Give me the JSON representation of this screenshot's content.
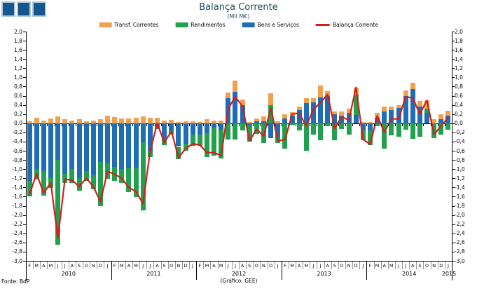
{
  "title": "Balança Corrente",
  "subtitle": "(Mil M€)",
  "source_note": "Fonte: BdP",
  "credit_note": "(Gráfico: GEE)",
  "logo": {
    "squares": 3,
    "color": "#15568E",
    "border_color": "#AFCBDD"
  },
  "colors": {
    "transf": "#F0A04E",
    "rendimentos": "#21A14D",
    "bens": "#1F6EB4",
    "balanca": "#D31E1E",
    "axis": "#000000",
    "title_text": "#1E4D5C"
  },
  "legend": [
    {
      "label": "Transf. Correntes",
      "color": "#F0A04E",
      "type": "box"
    },
    {
      "label": "Rendimentos",
      "color": "#21A14D",
      "type": "box"
    },
    {
      "label": "Bens e Serviços",
      "color": "#1F6EB4",
      "type": "box"
    },
    {
      "label": "Balança Corrente",
      "color": "#D31E1E",
      "type": "line"
    }
  ],
  "chart_data": {
    "type": "bar",
    "subtype": "stacked bars with line overlay",
    "unit": "Mil M€",
    "ylim": [
      -3.0,
      2.0
    ],
    "ytick_step": 0.2,
    "grid": false,
    "legend_position": "top",
    "months": [
      "F",
      "M",
      "A",
      "M",
      "J",
      "J",
      "A",
      "S",
      "O",
      "N",
      "D",
      "J",
      "F",
      "M",
      "A",
      "M",
      "J",
      "J",
      "A",
      "S",
      "O",
      "N",
      "D",
      "J",
      "F",
      "M",
      "A",
      "M",
      "J",
      "J",
      "A",
      "S",
      "O",
      "N",
      "D",
      "J",
      "F",
      "M",
      "A",
      "M",
      "J",
      "J",
      "A",
      "S",
      "O",
      "N",
      "D",
      "J",
      "F",
      "M",
      "A",
      "M",
      "J",
      "J",
      "A",
      "S",
      "O",
      "N",
      "D",
      "J"
    ],
    "years": [
      "2010",
      "2011",
      "2012",
      "2013",
      "2014",
      "2015"
    ],
    "stack_order": [
      "Bens e Serviços",
      "Rendimentos",
      "Transf. Correntes"
    ],
    "series": [
      {
        "name": "Transf. Correntes",
        "color": "#F0A04E",
        "role": "bar",
        "values": [
          0.05,
          0.12,
          0.06,
          0.11,
          0.15,
          0.09,
          0.06,
          0.09,
          0.05,
          0.06,
          0.09,
          0.16,
          0.14,
          0.1,
          0.1,
          0.12,
          0.15,
          0.12,
          0.12,
          0.06,
          0.08,
          0.03,
          0.05,
          0.05,
          0.03,
          0.09,
          0.06,
          0.06,
          0.13,
          0.25,
          0.12,
          0.02,
          0.06,
          0.1,
          0.26,
          0.05,
          0.08,
          0.08,
          0.08,
          0.1,
          0.1,
          0.25,
          0.1,
          0.07,
          0.1,
          0.1,
          0.15,
          0.02,
          0.02,
          0.1,
          0.1,
          0.08,
          0.05,
          0.12,
          0.15,
          0.12,
          0.18,
          0.09,
          0.1,
          0.11
        ]
      },
      {
        "name": "Rendimentos",
        "color": "#21A14D",
        "role": "bar",
        "values": [
          -0.35,
          -0.22,
          -0.53,
          -0.21,
          -1.85,
          -0.21,
          -0.3,
          -0.27,
          -0.2,
          -0.31,
          -0.95,
          -0.33,
          -0.3,
          -0.3,
          -0.52,
          -0.65,
          -1.48,
          -0.13,
          -0.04,
          -0.13,
          -0.1,
          -0.28,
          -0.15,
          -0.25,
          -0.25,
          -0.51,
          -0.61,
          -0.62,
          -0.35,
          -0.35,
          -0.15,
          -0.35,
          -0.24,
          -0.43,
          0.4,
          -0.1,
          -0.55,
          -0.04,
          -0.15,
          -0.6,
          -0.25,
          -0.37,
          -0.07,
          -0.37,
          -0.12,
          -0.25,
          0.45,
          -0.22,
          -0.32,
          -0.06,
          -0.55,
          -0.27,
          -0.3,
          -0.14,
          -0.34,
          -0.29,
          0.1,
          -0.33,
          -0.25,
          -0.14
        ]
      },
      {
        "name": "Bens e Serviços",
        "color": "#1F6EB4",
        "role": "bar",
        "values": [
          -1.25,
          -1.0,
          -1.05,
          -1.2,
          -0.8,
          -1.1,
          -1.0,
          -1.2,
          -1.05,
          -1.13,
          -0.85,
          -0.88,
          -0.95,
          -1.0,
          -0.98,
          -0.96,
          -0.42,
          -0.6,
          -0.08,
          -0.35,
          -0.15,
          -0.5,
          -0.45,
          -0.25,
          -0.25,
          -0.22,
          -0.09,
          -0.14,
          0.54,
          0.68,
          0.4,
          -0.05,
          0.05,
          0.05,
          -0.33,
          -0.33,
          0.11,
          0.16,
          0.29,
          0.44,
          0.45,
          0.57,
          0.6,
          0.19,
          0.16,
          0.22,
          0.18,
          -0.15,
          -0.16,
          0.12,
          0.26,
          0.29,
          0.34,
          0.6,
          0.74,
          0.37,
          0.22,
          0.0,
          0.09,
          0.16
        ]
      },
      {
        "name": "Balança Corrente",
        "color": "#D31E1E",
        "role": "line",
        "values": [
          -1.55,
          -1.1,
          -1.52,
          -1.3,
          -2.5,
          -1.22,
          -1.24,
          -1.38,
          -1.2,
          -1.38,
          -1.71,
          -1.05,
          -1.11,
          -1.2,
          -1.4,
          -1.49,
          -1.75,
          -0.61,
          0.0,
          -0.42,
          -0.17,
          -0.75,
          -0.55,
          -0.45,
          -0.47,
          -0.64,
          -0.64,
          -0.7,
          0.32,
          0.58,
          0.37,
          -0.38,
          -0.13,
          -0.28,
          0.33,
          -0.38,
          -0.36,
          0.2,
          0.22,
          -0.06,
          0.3,
          0.45,
          0.63,
          -0.11,
          0.14,
          0.07,
          0.78,
          -0.35,
          -0.46,
          0.16,
          -0.19,
          0.1,
          0.09,
          0.58,
          0.55,
          0.2,
          0.5,
          -0.24,
          -0.06,
          0.13
        ]
      }
    ]
  }
}
